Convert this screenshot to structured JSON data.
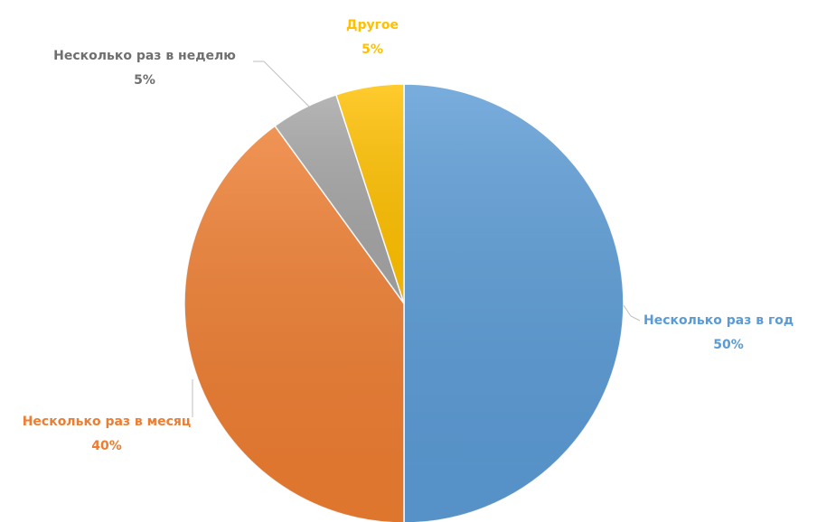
{
  "chart_data": {
    "type": "pie",
    "categories": [
      "Несколько раз в год",
      "Несколько раз в месяц",
      "Несколько раз в неделю",
      "Другое"
    ],
    "values": [
      50,
      40,
      5,
      5
    ],
    "value_labels": [
      "50%",
      "40%",
      "5%",
      "5%"
    ],
    "colors": [
      "#5b9bd5",
      "#ed7d31",
      "#a5a5a5",
      "#ffc000"
    ],
    "label_colors": [
      "#5b9bd5",
      "#ed7d31",
      "#6f6f6f",
      "#ffc000"
    ]
  }
}
